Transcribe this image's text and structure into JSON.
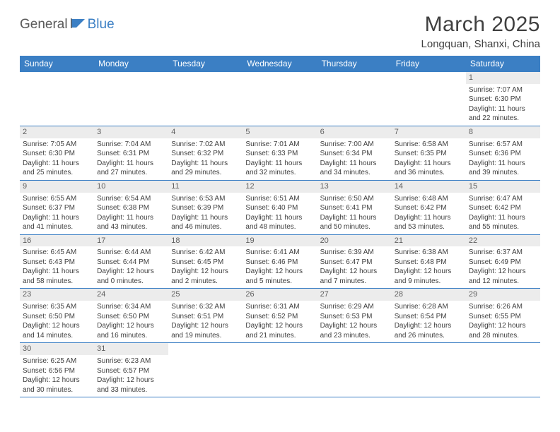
{
  "logo": {
    "part1": "General",
    "part2": "Blue"
  },
  "title": "March 2025",
  "location": "Longquan, Shanxi, China",
  "weekdays": [
    "Sunday",
    "Monday",
    "Tuesday",
    "Wednesday",
    "Thursday",
    "Friday",
    "Saturday"
  ],
  "colors": {
    "header_bg": "#3b7fc4",
    "header_text": "#ffffff",
    "border": "#3b7fc4",
    "daynum_bg": "#ececec",
    "text": "#404040",
    "logo_accent": "#3b7fc4",
    "logo_gray": "#5a5a5a"
  },
  "weeks": [
    [
      null,
      null,
      null,
      null,
      null,
      null,
      {
        "n": "1",
        "sunrise": "Sunrise: 7:07 AM",
        "sunset": "Sunset: 6:30 PM",
        "daylight": "Daylight: 11 hours and 22 minutes."
      }
    ],
    [
      {
        "n": "2",
        "sunrise": "Sunrise: 7:05 AM",
        "sunset": "Sunset: 6:30 PM",
        "daylight": "Daylight: 11 hours and 25 minutes."
      },
      {
        "n": "3",
        "sunrise": "Sunrise: 7:04 AM",
        "sunset": "Sunset: 6:31 PM",
        "daylight": "Daylight: 11 hours and 27 minutes."
      },
      {
        "n": "4",
        "sunrise": "Sunrise: 7:02 AM",
        "sunset": "Sunset: 6:32 PM",
        "daylight": "Daylight: 11 hours and 29 minutes."
      },
      {
        "n": "5",
        "sunrise": "Sunrise: 7:01 AM",
        "sunset": "Sunset: 6:33 PM",
        "daylight": "Daylight: 11 hours and 32 minutes."
      },
      {
        "n": "6",
        "sunrise": "Sunrise: 7:00 AM",
        "sunset": "Sunset: 6:34 PM",
        "daylight": "Daylight: 11 hours and 34 minutes."
      },
      {
        "n": "7",
        "sunrise": "Sunrise: 6:58 AM",
        "sunset": "Sunset: 6:35 PM",
        "daylight": "Daylight: 11 hours and 36 minutes."
      },
      {
        "n": "8",
        "sunrise": "Sunrise: 6:57 AM",
        "sunset": "Sunset: 6:36 PM",
        "daylight": "Daylight: 11 hours and 39 minutes."
      }
    ],
    [
      {
        "n": "9",
        "sunrise": "Sunrise: 6:55 AM",
        "sunset": "Sunset: 6:37 PM",
        "daylight": "Daylight: 11 hours and 41 minutes."
      },
      {
        "n": "10",
        "sunrise": "Sunrise: 6:54 AM",
        "sunset": "Sunset: 6:38 PM",
        "daylight": "Daylight: 11 hours and 43 minutes."
      },
      {
        "n": "11",
        "sunrise": "Sunrise: 6:53 AM",
        "sunset": "Sunset: 6:39 PM",
        "daylight": "Daylight: 11 hours and 46 minutes."
      },
      {
        "n": "12",
        "sunrise": "Sunrise: 6:51 AM",
        "sunset": "Sunset: 6:40 PM",
        "daylight": "Daylight: 11 hours and 48 minutes."
      },
      {
        "n": "13",
        "sunrise": "Sunrise: 6:50 AM",
        "sunset": "Sunset: 6:41 PM",
        "daylight": "Daylight: 11 hours and 50 minutes."
      },
      {
        "n": "14",
        "sunrise": "Sunrise: 6:48 AM",
        "sunset": "Sunset: 6:42 PM",
        "daylight": "Daylight: 11 hours and 53 minutes."
      },
      {
        "n": "15",
        "sunrise": "Sunrise: 6:47 AM",
        "sunset": "Sunset: 6:42 PM",
        "daylight": "Daylight: 11 hours and 55 minutes."
      }
    ],
    [
      {
        "n": "16",
        "sunrise": "Sunrise: 6:45 AM",
        "sunset": "Sunset: 6:43 PM",
        "daylight": "Daylight: 11 hours and 58 minutes."
      },
      {
        "n": "17",
        "sunrise": "Sunrise: 6:44 AM",
        "sunset": "Sunset: 6:44 PM",
        "daylight": "Daylight: 12 hours and 0 minutes."
      },
      {
        "n": "18",
        "sunrise": "Sunrise: 6:42 AM",
        "sunset": "Sunset: 6:45 PM",
        "daylight": "Daylight: 12 hours and 2 minutes."
      },
      {
        "n": "19",
        "sunrise": "Sunrise: 6:41 AM",
        "sunset": "Sunset: 6:46 PM",
        "daylight": "Daylight: 12 hours and 5 minutes."
      },
      {
        "n": "20",
        "sunrise": "Sunrise: 6:39 AM",
        "sunset": "Sunset: 6:47 PM",
        "daylight": "Daylight: 12 hours and 7 minutes."
      },
      {
        "n": "21",
        "sunrise": "Sunrise: 6:38 AM",
        "sunset": "Sunset: 6:48 PM",
        "daylight": "Daylight: 12 hours and 9 minutes."
      },
      {
        "n": "22",
        "sunrise": "Sunrise: 6:37 AM",
        "sunset": "Sunset: 6:49 PM",
        "daylight": "Daylight: 12 hours and 12 minutes."
      }
    ],
    [
      {
        "n": "23",
        "sunrise": "Sunrise: 6:35 AM",
        "sunset": "Sunset: 6:50 PM",
        "daylight": "Daylight: 12 hours and 14 minutes."
      },
      {
        "n": "24",
        "sunrise": "Sunrise: 6:34 AM",
        "sunset": "Sunset: 6:50 PM",
        "daylight": "Daylight: 12 hours and 16 minutes."
      },
      {
        "n": "25",
        "sunrise": "Sunrise: 6:32 AM",
        "sunset": "Sunset: 6:51 PM",
        "daylight": "Daylight: 12 hours and 19 minutes."
      },
      {
        "n": "26",
        "sunrise": "Sunrise: 6:31 AM",
        "sunset": "Sunset: 6:52 PM",
        "daylight": "Daylight: 12 hours and 21 minutes."
      },
      {
        "n": "27",
        "sunrise": "Sunrise: 6:29 AM",
        "sunset": "Sunset: 6:53 PM",
        "daylight": "Daylight: 12 hours and 23 minutes."
      },
      {
        "n": "28",
        "sunrise": "Sunrise: 6:28 AM",
        "sunset": "Sunset: 6:54 PM",
        "daylight": "Daylight: 12 hours and 26 minutes."
      },
      {
        "n": "29",
        "sunrise": "Sunrise: 6:26 AM",
        "sunset": "Sunset: 6:55 PM",
        "daylight": "Daylight: 12 hours and 28 minutes."
      }
    ],
    [
      {
        "n": "30",
        "sunrise": "Sunrise: 6:25 AM",
        "sunset": "Sunset: 6:56 PM",
        "daylight": "Daylight: 12 hours and 30 minutes."
      },
      {
        "n": "31",
        "sunrise": "Sunrise: 6:23 AM",
        "sunset": "Sunset: 6:57 PM",
        "daylight": "Daylight: 12 hours and 33 minutes."
      },
      null,
      null,
      null,
      null,
      null
    ]
  ]
}
